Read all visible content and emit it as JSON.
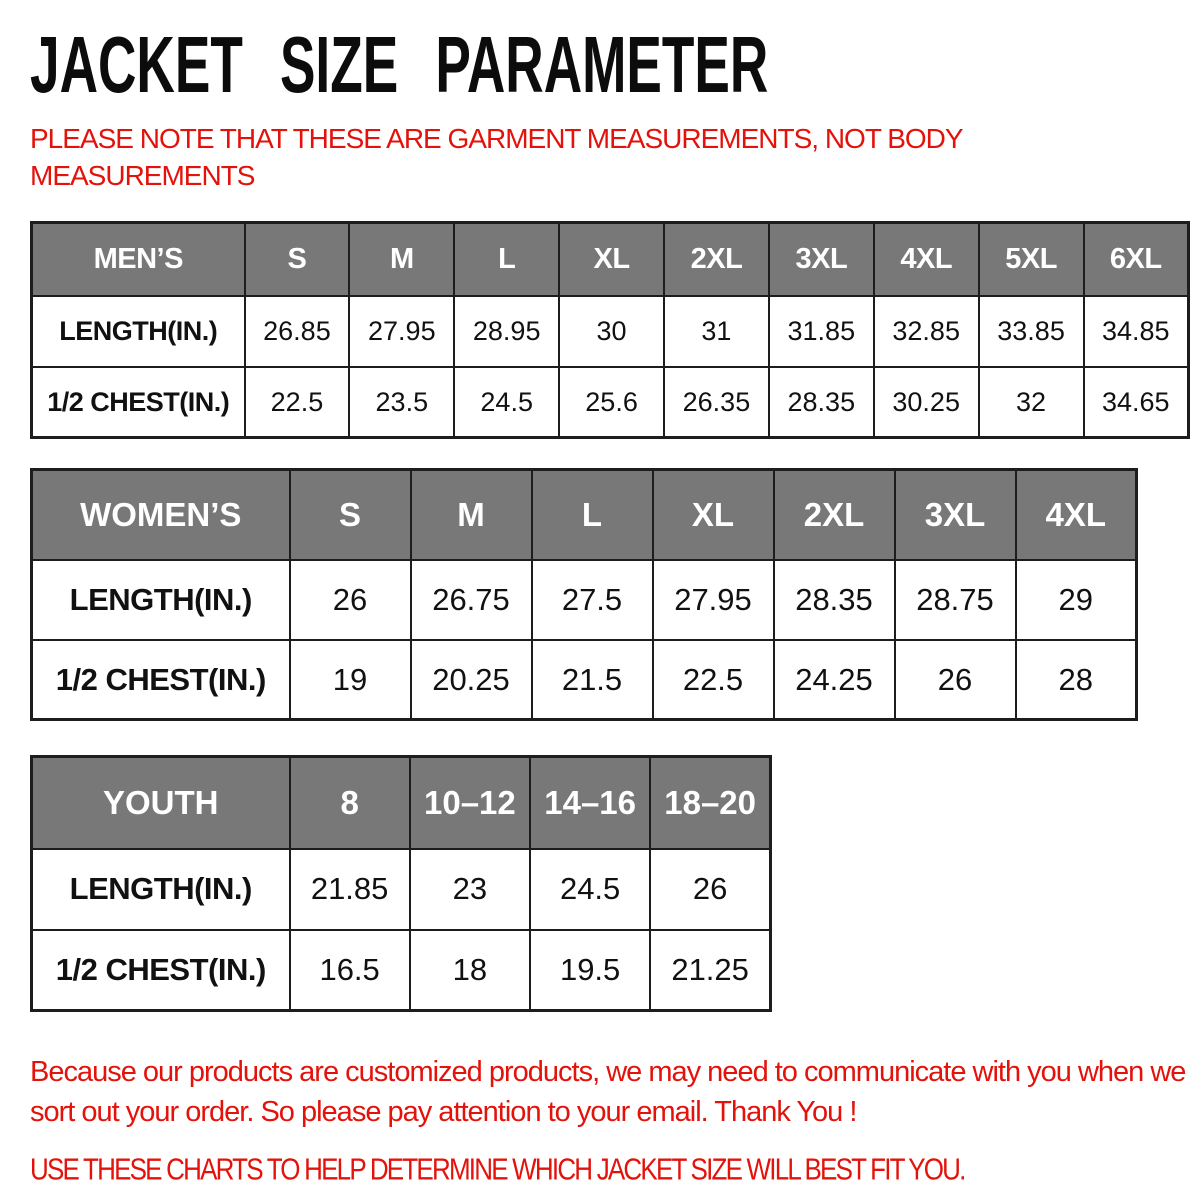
{
  "title": "JACKET SIZE PARAMETER",
  "note": "PLEASE NOTE THAT THESE ARE GARMENT MEASUREMENTS, NOT BODY MEASUREMENTS",
  "colors": {
    "accent_red": "#e3120b",
    "table_header_gray": "#787878",
    "border_dark": "#1d1d1d",
    "title_black": "#0c0c0c"
  },
  "tables": {
    "mens": {
      "header": [
        "MEN’S",
        "S",
        "M",
        "L",
        "XL",
        "2XL",
        "3XL",
        "4XL",
        "5XL",
        "6XL"
      ],
      "rows": [
        [
          "LENGTH(IN.)",
          "26.85",
          "27.95",
          "28.95",
          "30",
          "31",
          "31.85",
          "32.85",
          "33.85",
          "34.85"
        ],
        [
          "1/2 CHEST(IN.)",
          "22.5",
          "23.5",
          "24.5",
          "25.6",
          "26.35",
          "28.35",
          "30.25",
          "32",
          "34.65"
        ]
      ]
    },
    "womens": {
      "header": [
        "WOMEN’S",
        "S",
        "M",
        "L",
        "XL",
        "2XL",
        "3XL",
        "4XL"
      ],
      "rows": [
        [
          "LENGTH(IN.)",
          "26",
          "26.75",
          "27.5",
          "27.95",
          "28.35",
          "28.75",
          "29"
        ],
        [
          "1/2 CHEST(IN.)",
          "19",
          "20.25",
          "21.5",
          "22.5",
          "24.25",
          "26",
          "28"
        ]
      ]
    },
    "youth": {
      "header": [
        "YOUTH",
        "8",
        "10–12",
        "14–16",
        "18–20"
      ],
      "rows": [
        [
          "LENGTH(IN.)",
          "21.85",
          "23",
          "24.5",
          "26"
        ],
        [
          "1/2 CHEST(IN.)",
          "16.5",
          "18",
          "19.5",
          "21.25"
        ]
      ]
    }
  },
  "footer": {
    "paragraph": "Because our products are customized products, we may need to communicate with you when we sort out your order. So please pay attention to your email. Thank You !",
    "cta": "USE THESE CHARTS TO HELP DETERMINE WHICH JACKET SIZE WILL BEST FIT YOU."
  }
}
